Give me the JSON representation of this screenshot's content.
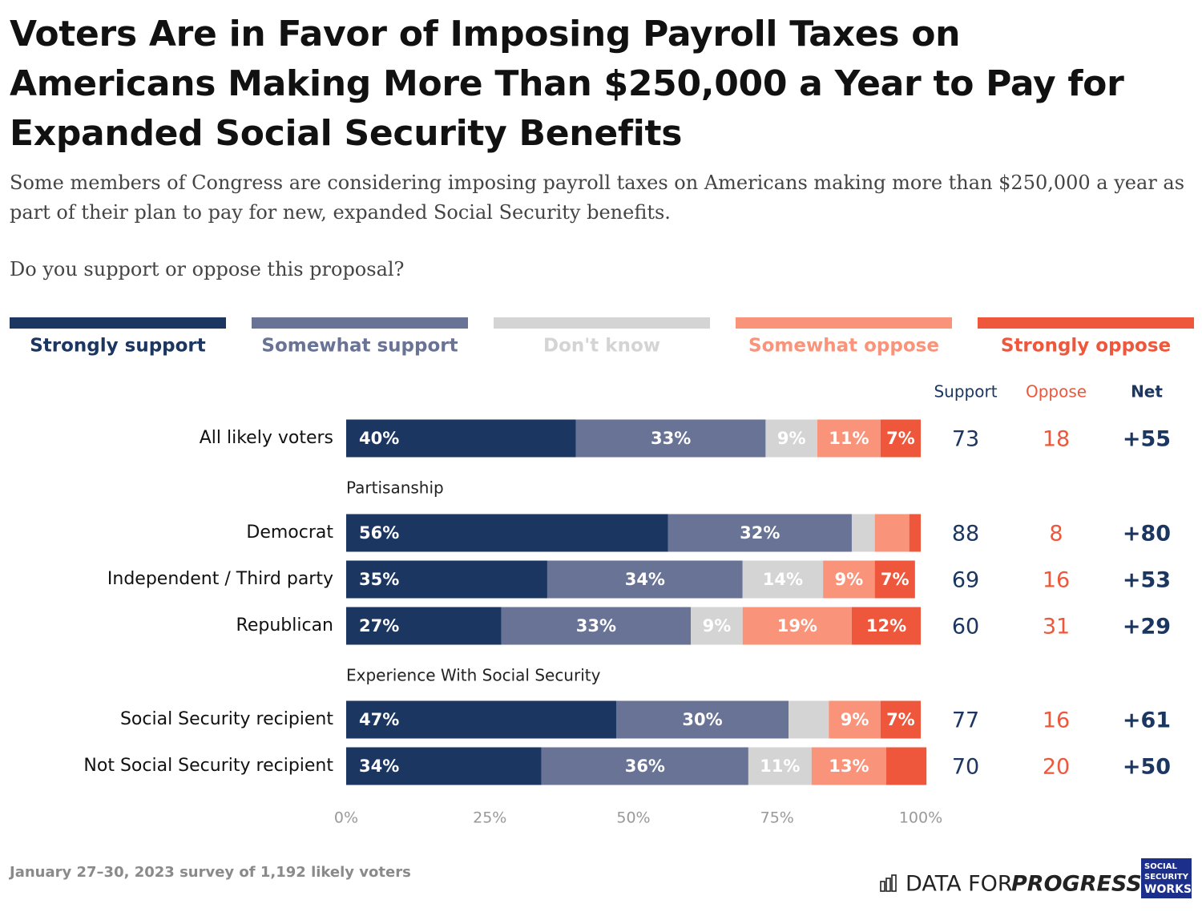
{
  "chart_data": {
    "type": "stacked-bar",
    "title": "Voters Are in Favor of Imposing Payroll Taxes on Americans Making More Than $250,000 a Year to Pay for Expanded Social Security Benefits",
    "subtitle": "Some members of Congress are considering imposing payroll taxes on Americans making more than $250,000 a year as part of their plan to pay for new, expanded Social Security benefits.",
    "question": "Do you support or oppose this proposal?",
    "categories": [
      "All likely voters",
      "Democrat",
      "Independent / Third party",
      "Republican",
      "Social Security recipient",
      "Not Social Security recipient"
    ],
    "section_labels": [
      "Partisanship",
      "Experience With Social Security"
    ],
    "series": [
      {
        "name": "Strongly support",
        "color": "#1c3662",
        "values": [
          40,
          56,
          35,
          27,
          47,
          34
        ],
        "value_labels": [
          "40%",
          "56%",
          "35%",
          "27%",
          "47%",
          "34%"
        ]
      },
      {
        "name": "Somewhat support",
        "color": "#687395",
        "values": [
          33,
          32,
          34,
          33,
          30,
          36
        ],
        "value_labels": [
          "33%",
          "32%",
          "34%",
          "33%",
          "30%",
          "36%"
        ]
      },
      {
        "name": "Don't know",
        "color": "#d4d4d4",
        "values": [
          9,
          4,
          14,
          9,
          7,
          11
        ],
        "value_labels": [
          "9%",
          null,
          "14%",
          "9%",
          null,
          "11%"
        ]
      },
      {
        "name": "Somewhat oppose",
        "color": "#f9937a",
        "values": [
          11,
          6,
          9,
          19,
          9,
          13
        ],
        "value_labels": [
          "11%",
          null,
          "9%",
          "19%",
          "9%",
          "13%"
        ]
      },
      {
        "name": "Strongly oppose",
        "color": "#ee573b",
        "values": [
          7,
          2,
          7,
          12,
          7,
          7
        ],
        "value_labels": [
          "7%",
          null,
          "7%",
          "12%",
          "7%",
          null
        ]
      }
    ],
    "xlim": [
      0,
      100
    ],
    "xticks": [
      {
        "value": 0,
        "label": "0%"
      },
      {
        "value": 25,
        "label": "25%"
      },
      {
        "value": 50,
        "label": "50%"
      },
      {
        "value": 75,
        "label": "75%"
      },
      {
        "value": 100,
        "label": "100%"
      }
    ],
    "summary": {
      "support": {
        "header": "Support",
        "color": "#1c3662",
        "values": [
          73,
          88,
          69,
          60,
          77,
          70
        ]
      },
      "oppose": {
        "header": "Oppose",
        "color": "#ee573b",
        "values": [
          18,
          8,
          16,
          31,
          16,
          20
        ]
      },
      "net": {
        "header": "Net",
        "color": "#1c3662",
        "values": [
          55,
          80,
          53,
          29,
          61,
          50
        ],
        "value_labels": [
          "+55",
          "+80",
          "+53",
          "+29",
          "+61",
          "+50"
        ]
      }
    },
    "note": "January 27–30, 2023 survey of 1,192 likely voters",
    "logos": {
      "dfp": [
        "DATA FOR",
        "PROGRESS"
      ],
      "ssw": [
        "SOCIAL",
        "SECURITY",
        "WORKS."
      ]
    }
  }
}
